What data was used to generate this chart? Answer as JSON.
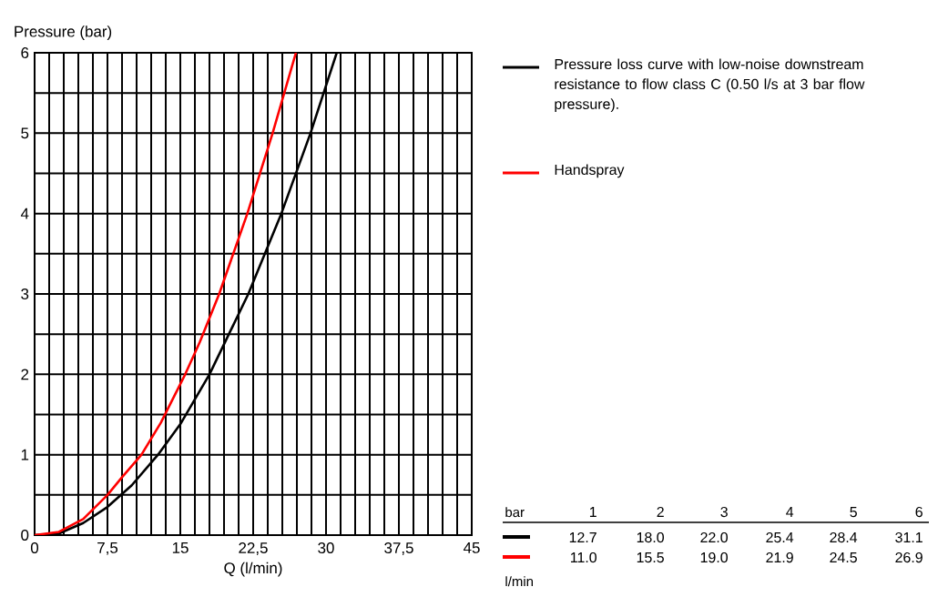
{
  "chart_data": {
    "type": "line",
    "xlabel": "Q (l/min)",
    "ylabel": "Pressure (bar)",
    "xlim": [
      0,
      45
    ],
    "ylim": [
      0,
      6
    ],
    "xticks": [
      0,
      {
        "value": 1.5,
        "label": null
      },
      {
        "value": 3,
        "label": null
      },
      {
        "value": 4.5,
        "label": null
      },
      {
        "value": 6,
        "label": null
      },
      {
        "value": 7.5,
        "label": "7,5"
      },
      {
        "value": 9,
        "label": null
      },
      {
        "value": 10.5,
        "label": null
      },
      {
        "value": 12,
        "label": null
      },
      {
        "value": 13.5,
        "label": null
      },
      15,
      {
        "value": 16.5,
        "label": null
      },
      {
        "value": 18,
        "label": null
      },
      {
        "value": 19.5,
        "label": null
      },
      {
        "value": 21,
        "label": null
      },
      {
        "value": 22.5,
        "label": "22,5"
      },
      {
        "value": 24,
        "label": null
      },
      {
        "value": 25.5,
        "label": null
      },
      {
        "value": 27,
        "label": null
      },
      {
        "value": 28.5,
        "label": null
      },
      30,
      {
        "value": 31.5,
        "label": null
      },
      {
        "value": 33,
        "label": null
      },
      {
        "value": 34.5,
        "label": null
      },
      {
        "value": 36,
        "label": null
      },
      {
        "value": 37.5,
        "label": "37,5"
      },
      {
        "value": 39,
        "label": null
      },
      {
        "value": 40.5,
        "label": null
      },
      {
        "value": 42,
        "label": null
      },
      {
        "value": 43.5,
        "label": null
      },
      45
    ],
    "yticks": [
      0,
      {
        "value": 0.5,
        "label": null
      },
      1,
      {
        "value": 1.5,
        "label": null
      },
      2,
      {
        "value": 2.5,
        "label": null
      },
      3,
      {
        "value": 3.5,
        "label": null
      },
      4,
      {
        "value": 4.5,
        "label": null
      },
      5,
      {
        "value": 5.5,
        "label": null
      },
      6
    ],
    "grid": true,
    "legend": "right",
    "line_style": "solid",
    "series": [
      {
        "name": "Pressure loss curve with low-noise downstream resistance to flow class C (0.50 l/s at 3 bar flow pressure).",
        "color": "#000000",
        "x": [
          0,
          2.5,
          5,
          7.5,
          10,
          12.7,
          15,
          18,
          20,
          22,
          25.4,
          28.4,
          31.1
        ],
        "values": [
          0,
          0.02,
          0.15,
          0.35,
          0.62,
          1,
          1.38,
          2,
          2.5,
          3,
          4,
          5,
          6
        ]
      },
      {
        "name": "Handspray",
        "color": "#ff0000",
        "x": [
          0,
          2.5,
          5,
          7.5,
          9,
          11,
          13,
          15.5,
          17,
          19,
          21.9,
          24.5,
          26.9
        ],
        "values": [
          0,
          0.04,
          0.2,
          0.5,
          0.72,
          1,
          1.4,
          2,
          2.4,
          3,
          4,
          5,
          6
        ]
      }
    ],
    "annotations": [
      "bar",
      "1",
      "2",
      "3",
      "4",
      "5",
      "6",
      "12.7",
      "18.0",
      "22.0",
      "25.4",
      "28.4",
      "31.1",
      "11.0",
      "15.5",
      "19.0",
      "21.9",
      "24.5",
      "26.9",
      "l/min"
    ]
  }
}
